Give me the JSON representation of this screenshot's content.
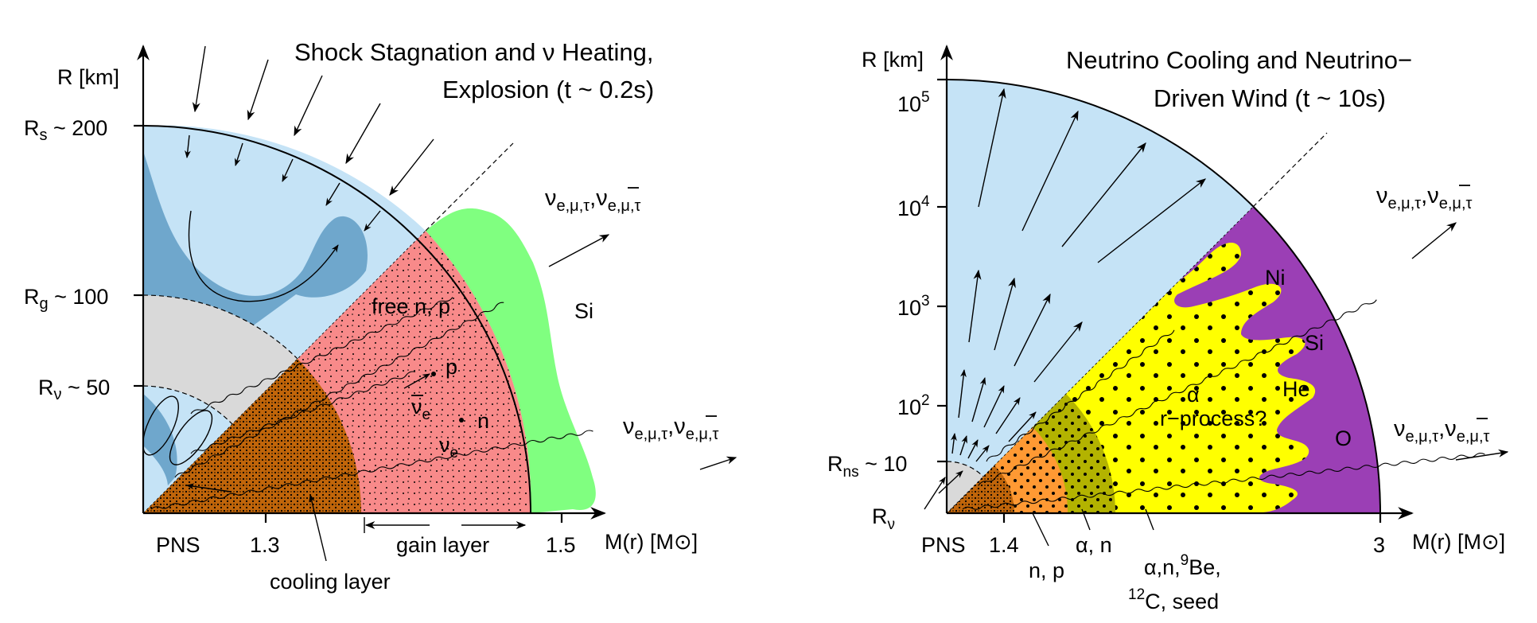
{
  "left_panel": {
    "title_line1": "Shock Stagnation and ν Heating,",
    "title_line2": "Explosion  (t ~ 0.2s)",
    "y_axis_label": "R [km]",
    "x_axis_label": "M(r) [M",
    "x_axis_label_end": "]",
    "ticks": {
      "rs_label": "R",
      "rs_sub": "s",
      "rs_value": " ~ 200",
      "rg_label": "R",
      "rg_sub": "g",
      "rg_value": " ~ 100",
      "rnu_label": "R",
      "rnu_sub": "ν",
      "rnu_value": " ~ 50",
      "x_pns": "PNS",
      "x_13": "1.3",
      "x_15": "1.5"
    },
    "region_labels": {
      "free_np": "free n, p",
      "p": "p",
      "n": "n",
      "nu_e_bar": "ν",
      "nu_e_bar_sub": "e",
      "nu_e": "ν",
      "nu_e_sub": "e",
      "si": "Si",
      "gain_layer": "gain layer",
      "cooling_layer": "cooling layer"
    },
    "neutrino_label_main": "ν",
    "neutrino_label_sub": "e,μ,τ",
    "neutrino_label_sep": ",",
    "neutrino_label_bar": "ν",
    "neutrino_label_bar_sub": "e,μ,τ"
  },
  "right_panel": {
    "title_line1": "Neutrino Cooling and Neutrino−",
    "title_line2": "Driven Wind  (t ~ 10s)",
    "y_axis_label": "R [km]",
    "x_axis_label": "M(r) [M",
    "x_axis_label_end": "]",
    "y_ticks": [
      {
        "base": "10",
        "exp": "5"
      },
      {
        "base": "10",
        "exp": "4"
      },
      {
        "base": "10",
        "exp": "3"
      },
      {
        "base": "10",
        "exp": "2"
      }
    ],
    "rns_label": "R",
    "rns_sub": "ns",
    "rns_value": "~ 10",
    "rnu_label": "R",
    "rnu_sub": "ν",
    "x_pns": "PNS",
    "x_14": "1.4",
    "x_3": "3",
    "region_labels": {
      "ni": "Ni",
      "si": "Si",
      "he": "He",
      "o": "O",
      "alpha": "α",
      "r_process": "r−process?",
      "np": "n, p",
      "alpha_n": "α, n",
      "seed_line1_pre": "α,n,",
      "seed_line1_sup": "9",
      "seed_line1_post": "Be,",
      "seed_line2_sup": "12",
      "seed_line2_post": "C, seed"
    },
    "neutrino_label_main": "ν",
    "neutrino_label_sub": "e,μ,τ",
    "neutrino_label_sep": ",",
    "neutrino_label_bar": "ν",
    "neutrino_label_bar_sub": "e,μ,τ"
  },
  "colors": {
    "light_blue": "#c5e3f6",
    "mid_blue": "#6fa7cc",
    "grey": "#d9d9d9",
    "salmon": "#f88a8a",
    "brown": "#c0650a",
    "green": "#80ff80",
    "orange": "#ff9933",
    "olive": "#b3b300",
    "yellow": "#ffff00",
    "purple": "#9b3fb5"
  }
}
